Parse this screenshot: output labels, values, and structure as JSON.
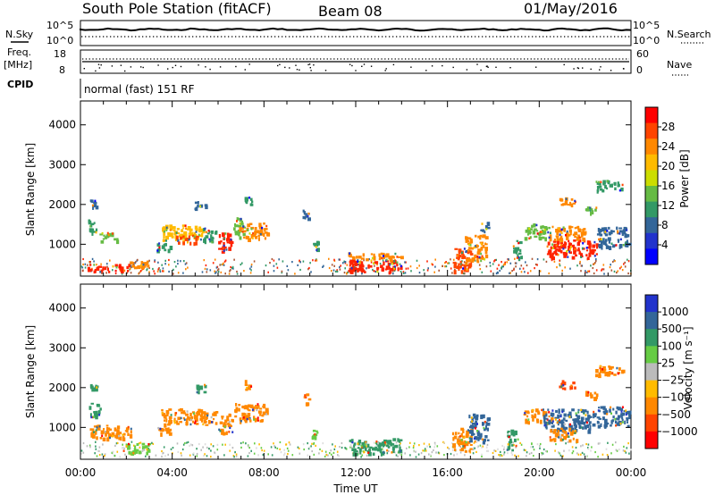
{
  "header": {
    "station": "South Pole Station (fitACF)",
    "beam": "Beam 08",
    "date": "01/May/2016"
  },
  "left_labels": {
    "nsky": "N.Sky",
    "freq": "Freq.",
    "freq_unit": "[MHz]",
    "cpid": "CPID"
  },
  "right_labels": {
    "nsearch": "N.Search",
    "nave": "Nave"
  },
  "nsky_ticks": [
    "10^5",
    "10^0"
  ],
  "freq_ticks": [
    "18",
    "8"
  ],
  "nave_ticks": [
    "60",
    "0"
  ],
  "cpid_text": "normal (fast) 151 RF",
  "colors": {
    "dots": "#000000",
    "frame": "#000000"
  },
  "chart_data": [
    {
      "type": "heatmap",
      "name": "power",
      "ylabel": "Slant Range [km]",
      "y_ticks": [
        1000,
        2000,
        3000,
        4000
      ],
      "ylim": [
        200,
        4600
      ],
      "xlim": [
        0,
        24
      ],
      "colorbar": {
        "label": "Power [dB]",
        "ticks": [
          "28",
          "24",
          "20",
          "16",
          "12",
          "8",
          "4"
        ],
        "colors": [
          "#ff0000",
          "#ff4400",
          "#ff8800",
          "#ffbb00",
          "#ccdd00",
          "#66bb44",
          "#339966",
          "#336699",
          "#2233cc",
          "#0000ff"
        ]
      },
      "blobs": [
        {
          "t": 0.5,
          "r": 2050,
          "w": 0.35,
          "h": 180,
          "c": "#336699"
        },
        {
          "t": 0.5,
          "r": 1450,
          "w": 0.4,
          "h": 350,
          "c": "#339966"
        },
        {
          "t": 1.2,
          "r": 1200,
          "w": 0.8,
          "h": 220,
          "c": "#66bb44"
        },
        {
          "t": 1.2,
          "r": 420,
          "w": 1.8,
          "h": 180,
          "c": "#ff2200"
        },
        {
          "t": 2.6,
          "r": 520,
          "w": 0.9,
          "h": 160,
          "c": "#ff8800"
        },
        {
          "t": 3.6,
          "r": 950,
          "w": 0.6,
          "h": 200,
          "c": "#339966"
        },
        {
          "t": 4.4,
          "r": 1300,
          "w": 1.8,
          "h": 400,
          "c": "#ffbb00"
        },
        {
          "t": 4.6,
          "r": 1150,
          "w": 0.9,
          "h": 200,
          "c": "#ff4400"
        },
        {
          "t": 5.6,
          "r": 1250,
          "w": 0.6,
          "h": 350,
          "c": "#339966"
        },
        {
          "t": 6.3,
          "r": 1050,
          "w": 0.6,
          "h": 500,
          "c": "#ff2200"
        },
        {
          "t": 6.9,
          "r": 1450,
          "w": 0.5,
          "h": 500,
          "c": "#66bb44"
        },
        {
          "t": 7.5,
          "r": 1350,
          "w": 1.3,
          "h": 400,
          "c": "#ff8800"
        },
        {
          "t": 5.2,
          "r": 2000,
          "w": 0.5,
          "h": 200,
          "c": "#336699"
        },
        {
          "t": 7.3,
          "r": 2100,
          "w": 0.3,
          "h": 250,
          "c": "#339966"
        },
        {
          "t": 9.8,
          "r": 1750,
          "w": 0.25,
          "h": 250,
          "c": "#336699"
        },
        {
          "t": 10.2,
          "r": 1000,
          "w": 0.25,
          "h": 300,
          "c": "#339966"
        },
        {
          "t": 12.8,
          "r": 480,
          "w": 2.3,
          "h": 320,
          "c": "#ff2200"
        },
        {
          "t": 12.8,
          "r": 720,
          "w": 2.3,
          "h": 170,
          "c": "#ff8800"
        },
        {
          "t": 16.6,
          "r": 650,
          "w": 0.8,
          "h": 600,
          "c": "#ff4400"
        },
        {
          "t": 17.2,
          "r": 900,
          "w": 0.9,
          "h": 700,
          "c": "#ff8800"
        },
        {
          "t": 17.6,
          "r": 1450,
          "w": 0.35,
          "h": 260,
          "c": "#336699"
        },
        {
          "t": 19.0,
          "r": 900,
          "w": 0.35,
          "h": 500,
          "c": "#339966"
        },
        {
          "t": 19.9,
          "r": 1350,
          "w": 1.2,
          "h": 350,
          "c": "#66bb44"
        },
        {
          "t": 21.4,
          "r": 900,
          "w": 2.2,
          "h": 450,
          "c": "#ff2200"
        },
        {
          "t": 21.2,
          "r": 1300,
          "w": 1.6,
          "h": 350,
          "c": "#ff8800"
        },
        {
          "t": 23.2,
          "r": 1200,
          "w": 1.4,
          "h": 500,
          "c": "#336699"
        },
        {
          "t": 21.2,
          "r": 2100,
          "w": 0.7,
          "h": 200,
          "c": "#ff8800"
        },
        {
          "t": 23.0,
          "r": 2500,
          "w": 1.2,
          "h": 250,
          "c": "#339966"
        },
        {
          "t": 22.2,
          "r": 1900,
          "w": 0.6,
          "h": 180,
          "c": "#66bb44"
        }
      ]
    },
    {
      "type": "heatmap",
      "name": "velocity",
      "ylabel": "Slant Range [km]",
      "y_ticks": [
        1000,
        2000,
        3000,
        4000
      ],
      "ylim": [
        200,
        4600
      ],
      "xlim": [
        0,
        24
      ],
      "colorbar": {
        "label": "Velocity [m s⁻¹]",
        "ticks": [
          "1000",
          "500",
          "100",
          "25",
          "−25",
          "−100",
          "−500",
          "−1000"
        ],
        "colors": [
          "#2233cc",
          "#336699",
          "#339966",
          "#66cc44",
          "#bbbbbb",
          "#ffbb00",
          "#ff8800",
          "#ff4400",
          "#ff0000"
        ]
      },
      "blobs": [
        {
          "t": 0.5,
          "r": 2050,
          "w": 0.35,
          "h": 180,
          "c": "#339966"
        },
        {
          "t": 0.6,
          "r": 1450,
          "w": 0.5,
          "h": 350,
          "c": "#339966"
        },
        {
          "t": 1.3,
          "r": 900,
          "w": 1.8,
          "h": 350,
          "c": "#ff8800"
        },
        {
          "t": 2.4,
          "r": 500,
          "w": 1.2,
          "h": 250,
          "c": "#66cc44"
        },
        {
          "t": 3.6,
          "r": 950,
          "w": 0.6,
          "h": 200,
          "c": "#ff8800"
        },
        {
          "t": 4.4,
          "r": 1300,
          "w": 1.8,
          "h": 400,
          "c": "#ff8800"
        },
        {
          "t": 5.6,
          "r": 1250,
          "w": 0.6,
          "h": 350,
          "c": "#ff8800"
        },
        {
          "t": 6.3,
          "r": 1100,
          "w": 0.6,
          "h": 500,
          "c": "#ff8800"
        },
        {
          "t": 7.4,
          "r": 1400,
          "w": 1.4,
          "h": 450,
          "c": "#ff8800"
        },
        {
          "t": 5.2,
          "r": 2000,
          "w": 0.5,
          "h": 200,
          "c": "#339966"
        },
        {
          "t": 7.3,
          "r": 2100,
          "w": 0.3,
          "h": 250,
          "c": "#ff8800"
        },
        {
          "t": 9.8,
          "r": 1750,
          "w": 0.25,
          "h": 250,
          "c": "#ff8800"
        },
        {
          "t": 10.2,
          "r": 900,
          "w": 0.25,
          "h": 300,
          "c": "#66cc44"
        },
        {
          "t": 12.8,
          "r": 550,
          "w": 2.3,
          "h": 380,
          "c": "#339966"
        },
        {
          "t": 16.6,
          "r": 700,
          "w": 0.8,
          "h": 600,
          "c": "#ff8800"
        },
        {
          "t": 17.3,
          "r": 1000,
          "w": 0.9,
          "h": 700,
          "c": "#336699"
        },
        {
          "t": 18.8,
          "r": 700,
          "w": 0.5,
          "h": 500,
          "c": "#339966"
        },
        {
          "t": 19.9,
          "r": 1300,
          "w": 1.2,
          "h": 350,
          "c": "#ff8800"
        },
        {
          "t": 21.3,
          "r": 1200,
          "w": 2.3,
          "h": 550,
          "c": "#336699"
        },
        {
          "t": 21.0,
          "r": 850,
          "w": 1.2,
          "h": 300,
          "c": "#ff8800"
        },
        {
          "t": 23.2,
          "r": 1300,
          "w": 1.4,
          "h": 500,
          "c": "#336699"
        },
        {
          "t": 21.2,
          "r": 2100,
          "w": 0.7,
          "h": 200,
          "c": "#ff4400"
        },
        {
          "t": 23.0,
          "r": 2450,
          "w": 1.2,
          "h": 250,
          "c": "#ff8800"
        },
        {
          "t": 22.2,
          "r": 1850,
          "w": 0.6,
          "h": 180,
          "c": "#ff8800"
        }
      ]
    }
  ],
  "x_ticks": [
    "00:00",
    "04:00",
    "08:00",
    "12:00",
    "16:00",
    "20:00",
    "00:00"
  ],
  "xlabel": "Time UT"
}
